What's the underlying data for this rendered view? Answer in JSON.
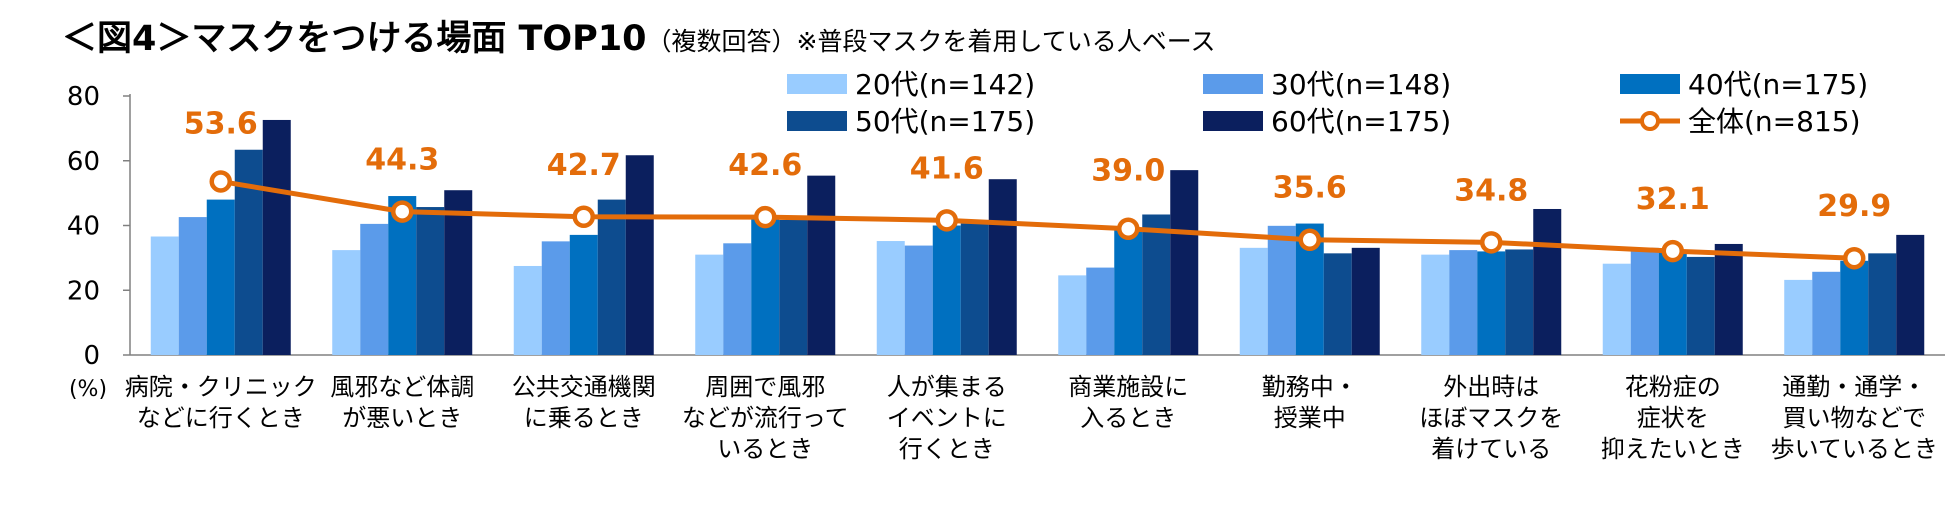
{
  "title": {
    "main": "＜図4＞マスクをつける場面 TOP10",
    "sub": "（複数回答）※普段マスクを着用している人ベース"
  },
  "chart_data": {
    "type": "bar",
    "title": "＜図4＞マスクをつける場面 TOP10",
    "ylabel": "(%)",
    "ylim": [
      0,
      80
    ],
    "yticks": [
      0,
      20,
      40,
      60,
      80
    ],
    "grid": false,
    "legend_position": "top-right",
    "categories": [
      [
        "病院・クリニック",
        "などに行くとき"
      ],
      [
        "風邪など体調",
        "が悪いとき"
      ],
      [
        "公共交通機関",
        "に乗るとき"
      ],
      [
        "周囲で風邪",
        "などが流行って",
        "いるとき"
      ],
      [
        "人が集まる",
        "イベントに",
        "行くとき"
      ],
      [
        "商業施設に",
        "入るとき"
      ],
      [
        "勤務中・",
        "授業中"
      ],
      [
        "外出時は",
        "ほぼマスクを",
        "着けている"
      ],
      [
        "花粉症の",
        "症状を",
        "抑えたいとき"
      ],
      [
        "通勤・通学・",
        "買い物などで",
        "歩いているとき"
      ]
    ],
    "series": [
      {
        "name": "20代(n=142)",
        "color": "#99CCFF",
        "values": [
          36.6,
          32.4,
          27.5,
          31.0,
          35.2,
          24.6,
          33.1,
          31.0,
          28.2,
          23.2
        ]
      },
      {
        "name": "30代(n=148)",
        "color": "#5B9BEA",
        "values": [
          42.6,
          40.5,
          35.1,
          34.5,
          33.8,
          27.0,
          39.9,
          32.4,
          33.1,
          25.7
        ]
      },
      {
        "name": "40代(n=175)",
        "color": "#0070C0",
        "values": [
          48.0,
          49.1,
          37.1,
          42.9,
          40.0,
          38.9,
          40.6,
          32.0,
          32.0,
          29.1
        ]
      },
      {
        "name": "50代(n=175)",
        "color": "#0D4C8F",
        "values": [
          63.4,
          45.7,
          48.0,
          41.7,
          40.6,
          43.4,
          31.4,
          32.6,
          30.3,
          31.4
        ]
      },
      {
        "name": "60代(n=175)",
        "color": "#0B1F5E",
        "values": [
          72.6,
          50.9,
          61.7,
          55.4,
          54.3,
          57.1,
          33.1,
          45.1,
          34.3,
          37.1
        ]
      }
    ],
    "total": {
      "name": "全体(n=815)",
      "color": "#E36C0A",
      "values": [
        53.6,
        44.3,
        42.7,
        42.6,
        41.6,
        39.0,
        35.6,
        34.8,
        32.1,
        29.9
      ],
      "labels": [
        "53.6",
        "44.3",
        "42.7",
        "42.6",
        "41.6",
        "39.0",
        "35.6",
        "34.8",
        "32.1",
        "29.9"
      ]
    }
  }
}
